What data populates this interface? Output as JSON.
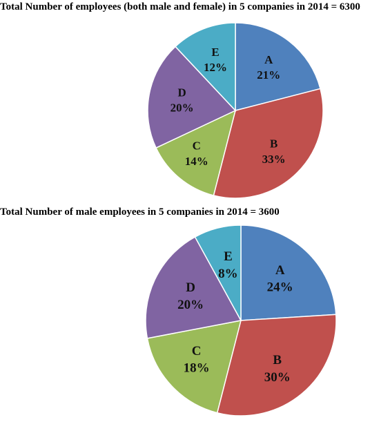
{
  "chart_data": [
    {
      "type": "pie",
      "title": "Total Number of employees (both male and female) in 5 companies in 2014 = 6300",
      "categories": [
        "A",
        "B",
        "C",
        "D",
        "E"
      ],
      "values": [
        21,
        33,
        14,
        20,
        12
      ],
      "value_labels": [
        "21%",
        "33%",
        "14%",
        "20%",
        "12%"
      ],
      "colors": [
        "#4F81BD",
        "#C0504D",
        "#9BBB59",
        "#8064A2",
        "#4BACC6"
      ],
      "start_angle_deg": 0,
      "direction": "clockwise"
    },
    {
      "type": "pie",
      "title": "Total Number of male employees in 5 companies in 2014 = 3600",
      "categories": [
        "A",
        "B",
        "C",
        "D",
        "E"
      ],
      "values": [
        24,
        30,
        18,
        20,
        8
      ],
      "value_labels": [
        "24%",
        "30%",
        "18%",
        "20%",
        "8%"
      ],
      "colors": [
        "#4F81BD",
        "#C0504D",
        "#9BBB59",
        "#8064A2",
        "#4BACC6"
      ],
      "start_angle_deg": 0,
      "direction": "clockwise"
    }
  ]
}
